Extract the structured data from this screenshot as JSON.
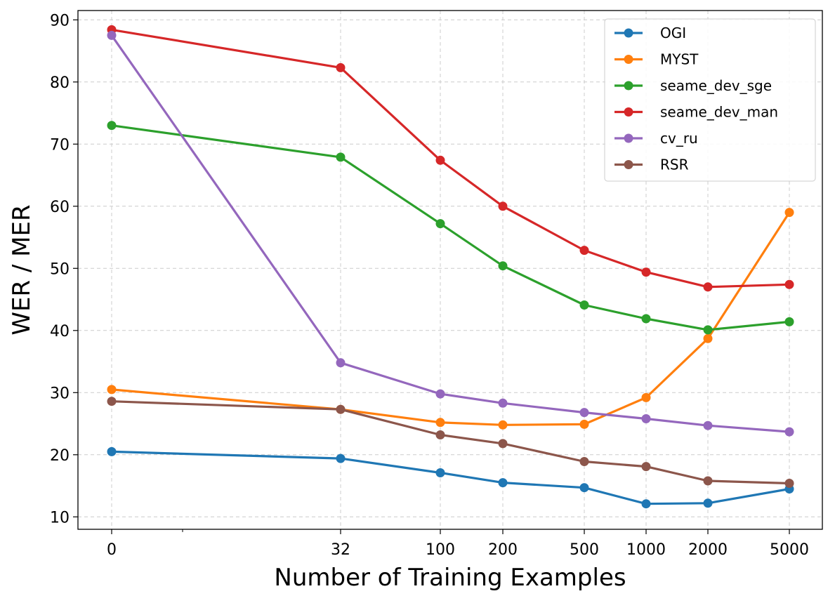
{
  "chart_data": {
    "type": "line",
    "xlabel": "Number of Training Examples",
    "ylabel": "WER / MER",
    "x_ticks": [
      "0",
      "32",
      "100",
      "200",
      "500",
      "1000",
      "2000",
      "5000"
    ],
    "ylim": [
      8,
      91.5
    ],
    "y_ticks": [
      10,
      20,
      30,
      40,
      50,
      60,
      70,
      80,
      90
    ],
    "grid": true,
    "legend_position": "top-right",
    "series": [
      {
        "name": "OGI",
        "color": "#1f77b4",
        "values": [
          20.5,
          19.4,
          17.1,
          15.5,
          14.7,
          12.1,
          12.2,
          14.5
        ]
      },
      {
        "name": "MYST",
        "color": "#ff7f0e",
        "values": [
          30.5,
          27.3,
          25.2,
          24.8,
          24.9,
          29.2,
          38.7,
          59.0
        ]
      },
      {
        "name": "seame_dev_sge",
        "color": "#2ca02c",
        "values": [
          73.0,
          67.9,
          57.2,
          50.4,
          44.1,
          41.9,
          40.1,
          41.4
        ]
      },
      {
        "name": "seame_dev_man",
        "color": "#d62728",
        "values": [
          88.4,
          82.3,
          67.4,
          60.0,
          52.9,
          49.4,
          47.0,
          47.4
        ]
      },
      {
        "name": "cv_ru",
        "color": "#9467bd",
        "values": [
          87.5,
          34.8,
          29.8,
          28.3,
          26.8,
          25.8,
          24.7,
          23.7
        ]
      },
      {
        "name": "RSR",
        "color": "#8c564b",
        "values": [
          28.6,
          27.3,
          23.2,
          21.8,
          18.9,
          18.1,
          15.8,
          15.4
        ]
      }
    ]
  }
}
